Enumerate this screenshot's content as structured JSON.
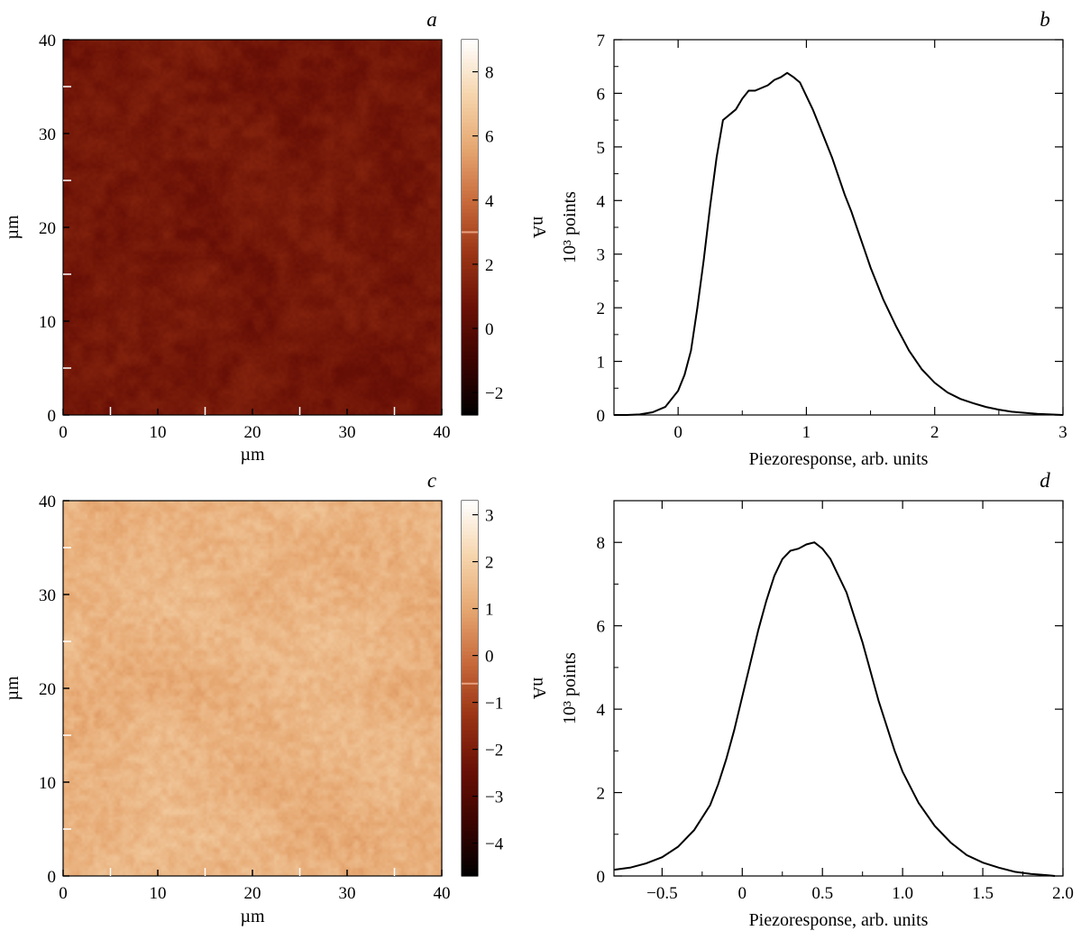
{
  "chart_data": [
    {
      "panel": "a",
      "type": "heatmap",
      "xlabel": "µm",
      "ylabel": "µm",
      "xlim": [
        0,
        40
      ],
      "ylim": [
        0,
        40
      ],
      "xticks": [
        0,
        10,
        20,
        30,
        40
      ],
      "yticks": [
        0,
        10,
        20,
        30,
        40
      ],
      "colorbar": {
        "label": "nA",
        "range": [
          -2.7,
          9
        ],
        "ticks": [
          -2,
          0,
          2,
          4,
          6,
          8
        ],
        "tick_labels": [
          "−2",
          "0",
          "2",
          "4",
          "6",
          "8"
        ],
        "marker_value": 3,
        "marker_color": "#e8a080"
      },
      "map_mean_nA": 1,
      "map_spread_nA": 0.6,
      "grain_um": 1.2,
      "colormap": [
        "#000000",
        "#3a0400",
        "#6a1006",
        "#9a3414",
        "#c86a3c",
        "#e6a872",
        "#f6d6ae",
        "#ffffff"
      ]
    },
    {
      "panel": "b",
      "type": "line",
      "xlabel": "Piezoresponse, arb. units",
      "ylabel": "10³ points",
      "xlim": [
        -0.5,
        3
      ],
      "ylim": [
        0,
        7
      ],
      "xticks": [
        0,
        1,
        2,
        3
      ],
      "yticks": [
        0,
        1,
        2,
        3,
        4,
        5,
        6,
        7
      ],
      "series": [
        {
          "x": [
            -0.5,
            -0.4,
            -0.3,
            -0.2,
            -0.1,
            0.0,
            0.05,
            0.1,
            0.15,
            0.2,
            0.25,
            0.3,
            0.35,
            0.4,
            0.45,
            0.5,
            0.55,
            0.6,
            0.65,
            0.7,
            0.75,
            0.8,
            0.85,
            0.9,
            0.95,
            1.0,
            1.05,
            1.1,
            1.15,
            1.2,
            1.25,
            1.3,
            1.35,
            1.4,
            1.45,
            1.5,
            1.55,
            1.6,
            1.7,
            1.8,
            1.9,
            2.0,
            2.1,
            2.2,
            2.3,
            2.4,
            2.5,
            2.6,
            2.8,
            3.0
          ],
          "y": [
            0,
            0,
            0.01,
            0.05,
            0.15,
            0.45,
            0.75,
            1.2,
            2.0,
            2.9,
            3.9,
            4.8,
            5.5,
            5.6,
            5.7,
            5.9,
            6.05,
            6.05,
            6.1,
            6.15,
            6.25,
            6.3,
            6.38,
            6.3,
            6.2,
            5.95,
            5.7,
            5.4,
            5.1,
            4.8,
            4.45,
            4.1,
            3.8,
            3.45,
            3.1,
            2.75,
            2.45,
            2.15,
            1.65,
            1.2,
            0.85,
            0.6,
            0.42,
            0.3,
            0.22,
            0.15,
            0.1,
            0.06,
            0.02,
            0
          ]
        }
      ]
    },
    {
      "panel": "c",
      "type": "heatmap",
      "xlabel": "µm",
      "ylabel": "µm",
      "xlim": [
        0,
        40
      ],
      "ylim": [
        0,
        40
      ],
      "xticks": [
        0,
        10,
        20,
        30,
        40
      ],
      "yticks": [
        0,
        10,
        20,
        30,
        40
      ],
      "colorbar": {
        "label": "nA",
        "range": [
          -4.7,
          3.3
        ],
        "ticks": [
          -4,
          -3,
          -2,
          -1,
          0,
          1,
          2,
          3
        ],
        "tick_labels": [
          "−4",
          "−3",
          "−2",
          "−1",
          "0",
          "1",
          "2",
          "3"
        ],
        "marker_value": -0.6,
        "marker_color": "#e8a080"
      },
      "map_mean_nA": 1.3,
      "map_spread_nA": 0.5,
      "grain_um": 0.7,
      "colormap": [
        "#000000",
        "#3a0400",
        "#6a1006",
        "#9a3414",
        "#c86a3c",
        "#e6a872",
        "#f6d6ae",
        "#ffffff"
      ]
    },
    {
      "panel": "d",
      "type": "line",
      "xlabel": "Piezoresponse, arb. units",
      "ylabel": "10³ points",
      "xlim": [
        -0.8,
        2.0
      ],
      "ylim": [
        0,
        9
      ],
      "xticks": [
        -0.5,
        0,
        0.5,
        1.0,
        1.5,
        2.0
      ],
      "xtick_labels": [
        "−0.5",
        "0",
        "0.5",
        "1.0",
        "1.5",
        "2.0"
      ],
      "yticks": [
        0,
        2,
        4,
        6,
        8
      ],
      "series": [
        {
          "x": [
            -0.8,
            -0.7,
            -0.6,
            -0.5,
            -0.4,
            -0.3,
            -0.2,
            -0.15,
            -0.1,
            -0.05,
            0.0,
            0.05,
            0.1,
            0.15,
            0.2,
            0.25,
            0.3,
            0.35,
            0.4,
            0.45,
            0.5,
            0.55,
            0.6,
            0.65,
            0.7,
            0.75,
            0.8,
            0.85,
            0.9,
            0.95,
            1.0,
            1.1,
            1.2,
            1.3,
            1.4,
            1.5,
            1.6,
            1.7,
            1.8,
            1.9,
            1.95
          ],
          "y": [
            0.15,
            0.2,
            0.3,
            0.45,
            0.7,
            1.1,
            1.7,
            2.2,
            2.8,
            3.5,
            4.3,
            5.1,
            5.9,
            6.6,
            7.2,
            7.6,
            7.8,
            7.85,
            7.95,
            8.0,
            7.85,
            7.6,
            7.2,
            6.8,
            6.2,
            5.6,
            4.9,
            4.2,
            3.6,
            3.0,
            2.5,
            1.75,
            1.2,
            0.8,
            0.5,
            0.32,
            0.2,
            0.1,
            0.05,
            0.02,
            0
          ]
        }
      ]
    }
  ]
}
